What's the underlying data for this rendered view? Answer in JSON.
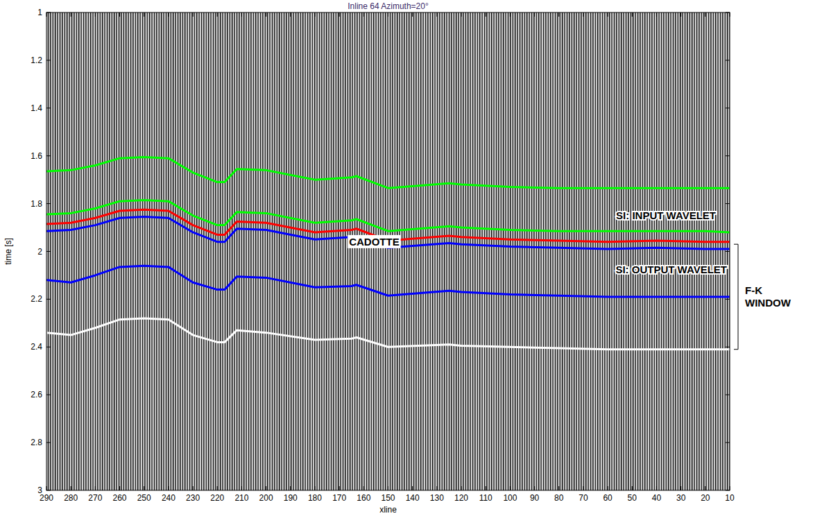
{
  "chart_data": {
    "type": "line",
    "title": "Inline 64 Azimuth=20°",
    "x_label": "xline",
    "y_label": "time [s]",
    "x": [
      290,
      280,
      270,
      260,
      250,
      240,
      230,
      220,
      217,
      212,
      200,
      180,
      165,
      163,
      150,
      125,
      120,
      100,
      80,
      60,
      40,
      20,
      10
    ],
    "series": [
      {
        "color": "#00ff00",
        "values": [
          1.665,
          1.66,
          1.64,
          1.61,
          1.605,
          1.61,
          1.67,
          1.71,
          1.71,
          1.655,
          1.66,
          1.7,
          1.69,
          1.685,
          1.735,
          1.715,
          1.72,
          1.73,
          1.735,
          1.735,
          1.735,
          1.735,
          1.735
        ]
      },
      {
        "color": "#00ff00",
        "values": [
          1.845,
          1.84,
          1.82,
          1.79,
          1.785,
          1.79,
          1.85,
          1.89,
          1.89,
          1.835,
          1.84,
          1.88,
          1.87,
          1.865,
          1.915,
          1.895,
          1.9,
          1.91,
          1.915,
          1.915,
          1.915,
          1.915,
          1.92
        ]
      },
      {
        "color": "#ff0000",
        "values": [
          1.885,
          1.88,
          1.86,
          1.83,
          1.825,
          1.83,
          1.89,
          1.93,
          1.93,
          1.875,
          1.88,
          1.92,
          1.91,
          1.905,
          1.955,
          1.935,
          1.94,
          1.95,
          1.955,
          1.96,
          1.955,
          1.96,
          1.96
        ]
      },
      {
        "color": "#0000ff",
        "values": [
          1.915,
          1.91,
          1.89,
          1.86,
          1.855,
          1.86,
          1.92,
          1.96,
          1.96,
          1.905,
          1.91,
          1.95,
          1.94,
          1.935,
          1.985,
          1.965,
          1.97,
          1.98,
          1.985,
          1.99,
          1.985,
          1.99,
          1.99
        ]
      },
      {
        "color": "#0000ff",
        "values": [
          2.12,
          2.13,
          2.1,
          2.065,
          2.06,
          2.065,
          2.13,
          2.16,
          2.16,
          2.105,
          2.11,
          2.15,
          2.145,
          2.14,
          2.185,
          2.165,
          2.17,
          2.18,
          2.185,
          2.19,
          2.19,
          2.19,
          2.19
        ]
      },
      {
        "color": "#ffffff",
        "values": [
          2.34,
          2.35,
          2.32,
          2.285,
          2.28,
          2.285,
          2.35,
          2.38,
          2.38,
          2.33,
          2.34,
          2.37,
          2.365,
          2.36,
          2.4,
          2.39,
          2.395,
          2.4,
          2.405,
          2.41,
          2.41,
          2.41,
          2.41
        ]
      }
    ],
    "annotations": [
      "SI: INPUT WAVELET",
      "CADOTTE",
      "SI: OUTPUT WAVELET",
      "F-K WINDOW"
    ],
    "xlim": [
      290,
      10
    ],
    "xticks": [
      290,
      280,
      270,
      260,
      250,
      240,
      230,
      220,
      210,
      200,
      190,
      180,
      170,
      160,
      150,
      140,
      130,
      120,
      110,
      100,
      90,
      80,
      70,
      60,
      50,
      40,
      30,
      20,
      10
    ],
    "ylim": [
      1,
      3
    ],
    "yticks": [
      1,
      1.2,
      1.4,
      1.6,
      1.8,
      2,
      2.2,
      2.4,
      2.6,
      2.8,
      3
    ],
    "grid": false
  }
}
